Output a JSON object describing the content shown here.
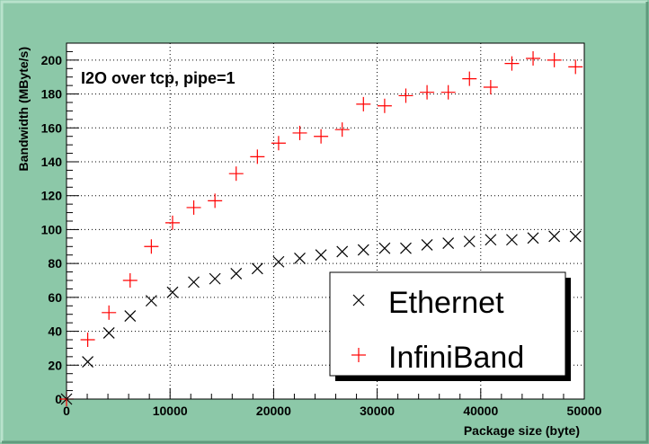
{
  "colors": {
    "canvas_bg": "#8cc8a8",
    "frame_light": "#b9e2cc",
    "frame_dark": "#5f9b7d",
    "plot_bg": "#ffffff",
    "grid": "#000000",
    "axis": "#000000",
    "ethernet": "#000000",
    "infiniband": "#ff0000",
    "legend_bg": "#ffffff",
    "legend_shadow": "#000000"
  },
  "chart_data": {
    "type": "scatter",
    "title": "",
    "annotation": "I2O over tcp, pipe=1",
    "xlabel": "Package size (byte)",
    "ylabel": "Bandwidth (MByte/s)",
    "xlim": [
      0,
      50000
    ],
    "ylim": [
      0,
      210
    ],
    "x_ticks": [
      0,
      10000,
      20000,
      30000,
      40000,
      50000
    ],
    "x_tick_labels": [
      "0",
      "10000",
      "20000",
      "30000",
      "40000",
      "50000"
    ],
    "y_ticks": [
      0,
      20,
      40,
      60,
      80,
      100,
      120,
      140,
      160,
      180,
      200
    ],
    "y_tick_labels": [
      "0",
      "20",
      "40",
      "60",
      "80",
      "100",
      "120",
      "140",
      "160",
      "180",
      "200"
    ],
    "grid": true,
    "legend_position": "bottom-right",
    "series": [
      {
        "name": "Ethernet",
        "marker": "x",
        "x": [
          0,
          2048,
          4096,
          6144,
          8192,
          10240,
          12288,
          14336,
          16384,
          18432,
          20480,
          22528,
          24576,
          26624,
          28672,
          30720,
          32768,
          34816,
          36864,
          38912,
          40960,
          43008,
          45056,
          47104,
          49152
        ],
        "y": [
          0,
          22,
          39,
          49,
          58,
          63,
          69,
          71,
          74,
          77,
          81,
          83,
          85,
          87,
          88,
          89,
          89,
          91,
          92,
          93,
          94,
          94,
          95,
          96,
          96
        ]
      },
      {
        "name": "InfiniBand",
        "marker": "+",
        "x": [
          0,
          2048,
          4096,
          6144,
          8192,
          10240,
          12288,
          14336,
          16384,
          18432,
          20480,
          22528,
          24576,
          26624,
          28672,
          30720,
          32768,
          34816,
          36864,
          38912,
          40960,
          43008,
          45056,
          47104,
          49152
        ],
        "y": [
          0,
          35,
          51,
          70,
          90,
          104,
          113,
          117,
          133,
          143,
          151,
          157,
          155,
          159,
          174,
          173,
          179,
          181,
          181,
          189,
          184,
          198,
          201,
          200,
          196
        ]
      }
    ]
  }
}
